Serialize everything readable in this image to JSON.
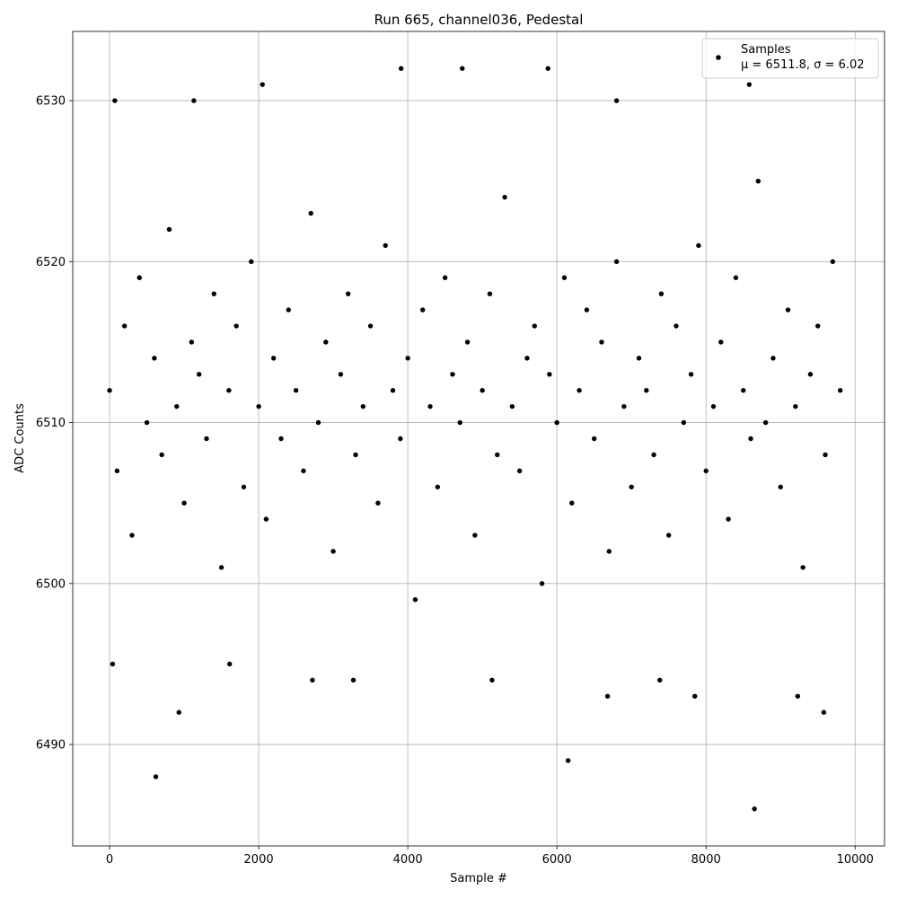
{
  "chart_data": {
    "type": "scatter",
    "title": "Run 665, channel036, Pedestal",
    "xlabel": "Sample #",
    "ylabel": "ADC Counts",
    "xlim": [
      -494.5,
      10394.5
    ],
    "ylim": [
      6483.7,
      6534.3
    ],
    "xticks": [
      0,
      2000,
      4000,
      6000,
      8000,
      10000
    ],
    "yticks": [
      6490,
      6500,
      6510,
      6520,
      6530
    ],
    "grid": true,
    "legend": "upper right",
    "stats_label": "μ = 6511.8, σ = 6.02",
    "series": [
      {
        "name": "Samples",
        "color": "#000000",
        "x": [
          0,
          100,
          200,
          300,
          400,
          500,
          600,
          700,
          800,
          900,
          1000,
          1100,
          1200,
          1300,
          1400,
          1500,
          1600,
          1700,
          1800,
          1900,
          2000,
          2100,
          2200,
          2300,
          2400,
          2500,
          2600,
          2700,
          2800,
          2900,
          3000,
          3100,
          3200,
          3300,
          3400,
          3500,
          3600,
          3700,
          3800,
          3900,
          4000,
          4100,
          4200,
          4300,
          4400,
          4500,
          4600,
          4700,
          4800,
          4900,
          5000,
          5100,
          5200,
          5300,
          5400,
          5500,
          5600,
          5700,
          5800,
          5900,
          6000,
          6100,
          6200,
          6300,
          6400,
          6500,
          6600,
          6700,
          6800,
          6900,
          7000,
          7100,
          7200,
          7300,
          7400,
          7500,
          7600,
          7700,
          7800,
          7900,
          8000,
          8100,
          8200,
          8300,
          8400,
          8500,
          8600,
          8700,
          8800,
          8900,
          9000,
          9100,
          9200,
          9300,
          9400,
          9500,
          9600,
          9700,
          9800,
          70,
          620,
          930,
          1130,
          2050,
          3910,
          4730,
          5880,
          6150,
          6800,
          8580,
          8650,
          9580,
          9230,
          6680,
          7850,
          40,
          1610,
          2720,
          3270,
          5130,
          7380
        ],
        "values": [
          6512,
          6507,
          6516,
          6503,
          6519,
          6510,
          6514,
          6508,
          6522,
          6511,
          6505,
          6515,
          6513,
          6509,
          6518,
          6501,
          6512,
          6516,
          6506,
          6520,
          6511,
          6504,
          6514,
          6509,
          6517,
          6512,
          6507,
          6523,
          6510,
          6515,
          6502,
          6513,
          6518,
          6508,
          6511,
          6516,
          6505,
          6521,
          6512,
          6509,
          6514,
          6499,
          6517,
          6511,
          6506,
          6519,
          6513,
          6510,
          6515,
          6503,
          6512,
          6518,
          6508,
          6524,
          6511,
          6507,
          6514,
          6516,
          6500,
          6513,
          6510,
          6519,
          6505,
          6512,
          6517,
          6509,
          6515,
          6502,
          6520,
          6511,
          6506,
          6514,
          6512,
          6508,
          6518,
          6503,
          6516,
          6510,
          6513,
          6521,
          6507,
          6511,
          6515,
          6504,
          6519,
          6512,
          6509,
          6525,
          6510,
          6514,
          6506,
          6517,
          6511,
          6501,
          6513,
          6516,
          6508,
          6520,
          6512,
          6530,
          6488,
          6492,
          6530,
          6531,
          6532,
          6532,
          6532,
          6489,
          6530,
          6531,
          6486,
          6492,
          6493,
          6493,
          6493,
          6495,
          6495,
          6494,
          6494,
          6494,
          6494
        ]
      }
    ]
  }
}
